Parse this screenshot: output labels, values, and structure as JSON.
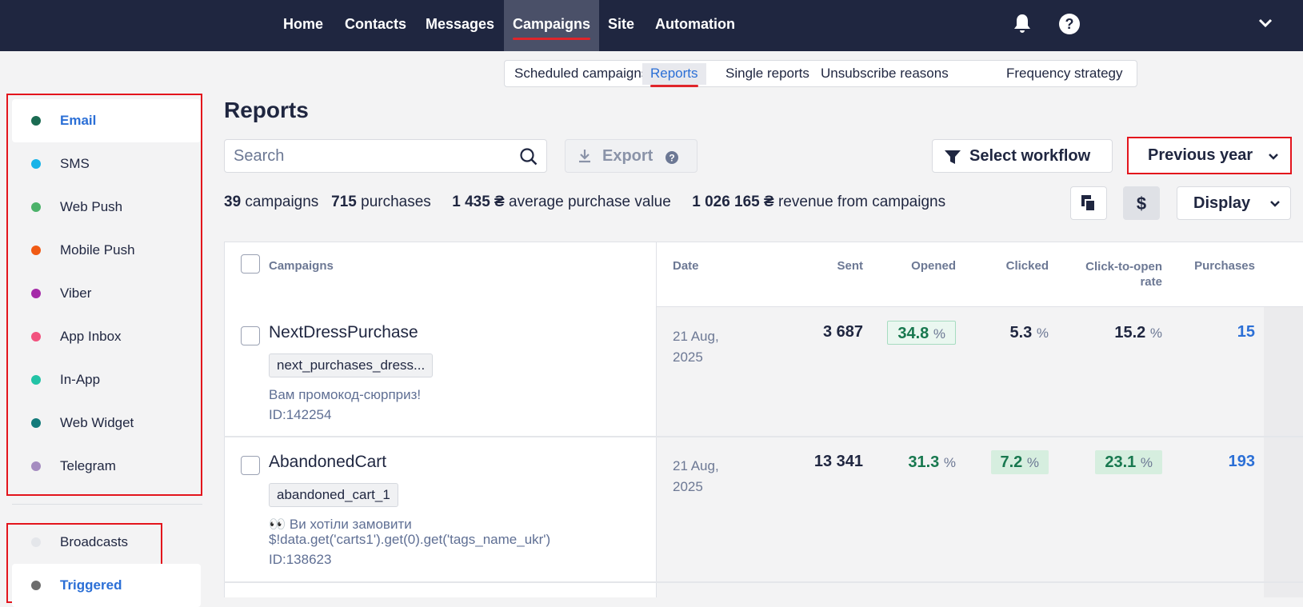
{
  "nav": {
    "items": [
      "Home",
      "Contacts",
      "Messages",
      "Campaigns",
      "Site",
      "Automation"
    ]
  },
  "subnav": {
    "items": [
      "Scheduled campaigns",
      "Reports",
      "Single reports",
      "Unsubscribe reasons",
      "Frequency strategy"
    ]
  },
  "sidebar": {
    "channels": [
      {
        "label": "Email",
        "color": "#1b6b52"
      },
      {
        "label": "SMS",
        "color": "#17b3e8"
      },
      {
        "label": "Web Push",
        "color": "#4cb26a"
      },
      {
        "label": "Mobile Push",
        "color": "#f05a14"
      },
      {
        "label": "Viber",
        "color": "#a52aa8"
      },
      {
        "label": "App Inbox",
        "color": "#f2527e"
      },
      {
        "label": "In-App",
        "color": "#22c3a6"
      },
      {
        "label": "Web Widget",
        "color": "#127a7a"
      },
      {
        "label": "Telegram",
        "color": "#a58cc0"
      }
    ],
    "types": [
      {
        "label": "Broadcasts",
        "color": "#e4e6ea"
      },
      {
        "label": "Triggered",
        "color": "#6d6d6d"
      }
    ]
  },
  "page": {
    "title": "Reports",
    "search_placeholder": "Search",
    "export": "Export",
    "select_workflow": "Select workflow",
    "period": "Previous year",
    "display": "Display"
  },
  "summary": [
    {
      "value": "39",
      "label": "campaigns"
    },
    {
      "value": "715",
      "label": "purchases"
    },
    {
      "value": "1 435 ₴",
      "label": "average purchase value"
    },
    {
      "value": "1 026 165 ₴",
      "label": "revenue from campaigns"
    }
  ],
  "table": {
    "columns": [
      "Campaigns",
      "Date",
      "Sent",
      "Opened",
      "Clicked",
      "Click-to-open rate",
      "Purchases"
    ],
    "rows": [
      {
        "name": "NextDressPurchase",
        "tag": "next_purchases_dress...",
        "subject": "Вам промокод-сюрприз!",
        "id": "ID:142254",
        "date": "21 Aug, 2025",
        "sent": "3 687",
        "opened": "34.8",
        "clicked": "5.3",
        "ctor": "15.2",
        "purchases": "15",
        "unit": "%"
      },
      {
        "name": "AbandonedCart",
        "tag": "abandoned_cart_1",
        "subject": "👀 Ви хотіли замовити\n$!data.get('carts1').get(0).get('tags_name_ukr')",
        "id": "ID:138623",
        "date": "21 Aug, 2025",
        "sent": "13 341",
        "opened": "31.3",
        "clicked": "7.2",
        "ctor": "23.1",
        "purchases": "193",
        "unit": "%"
      }
    ]
  }
}
